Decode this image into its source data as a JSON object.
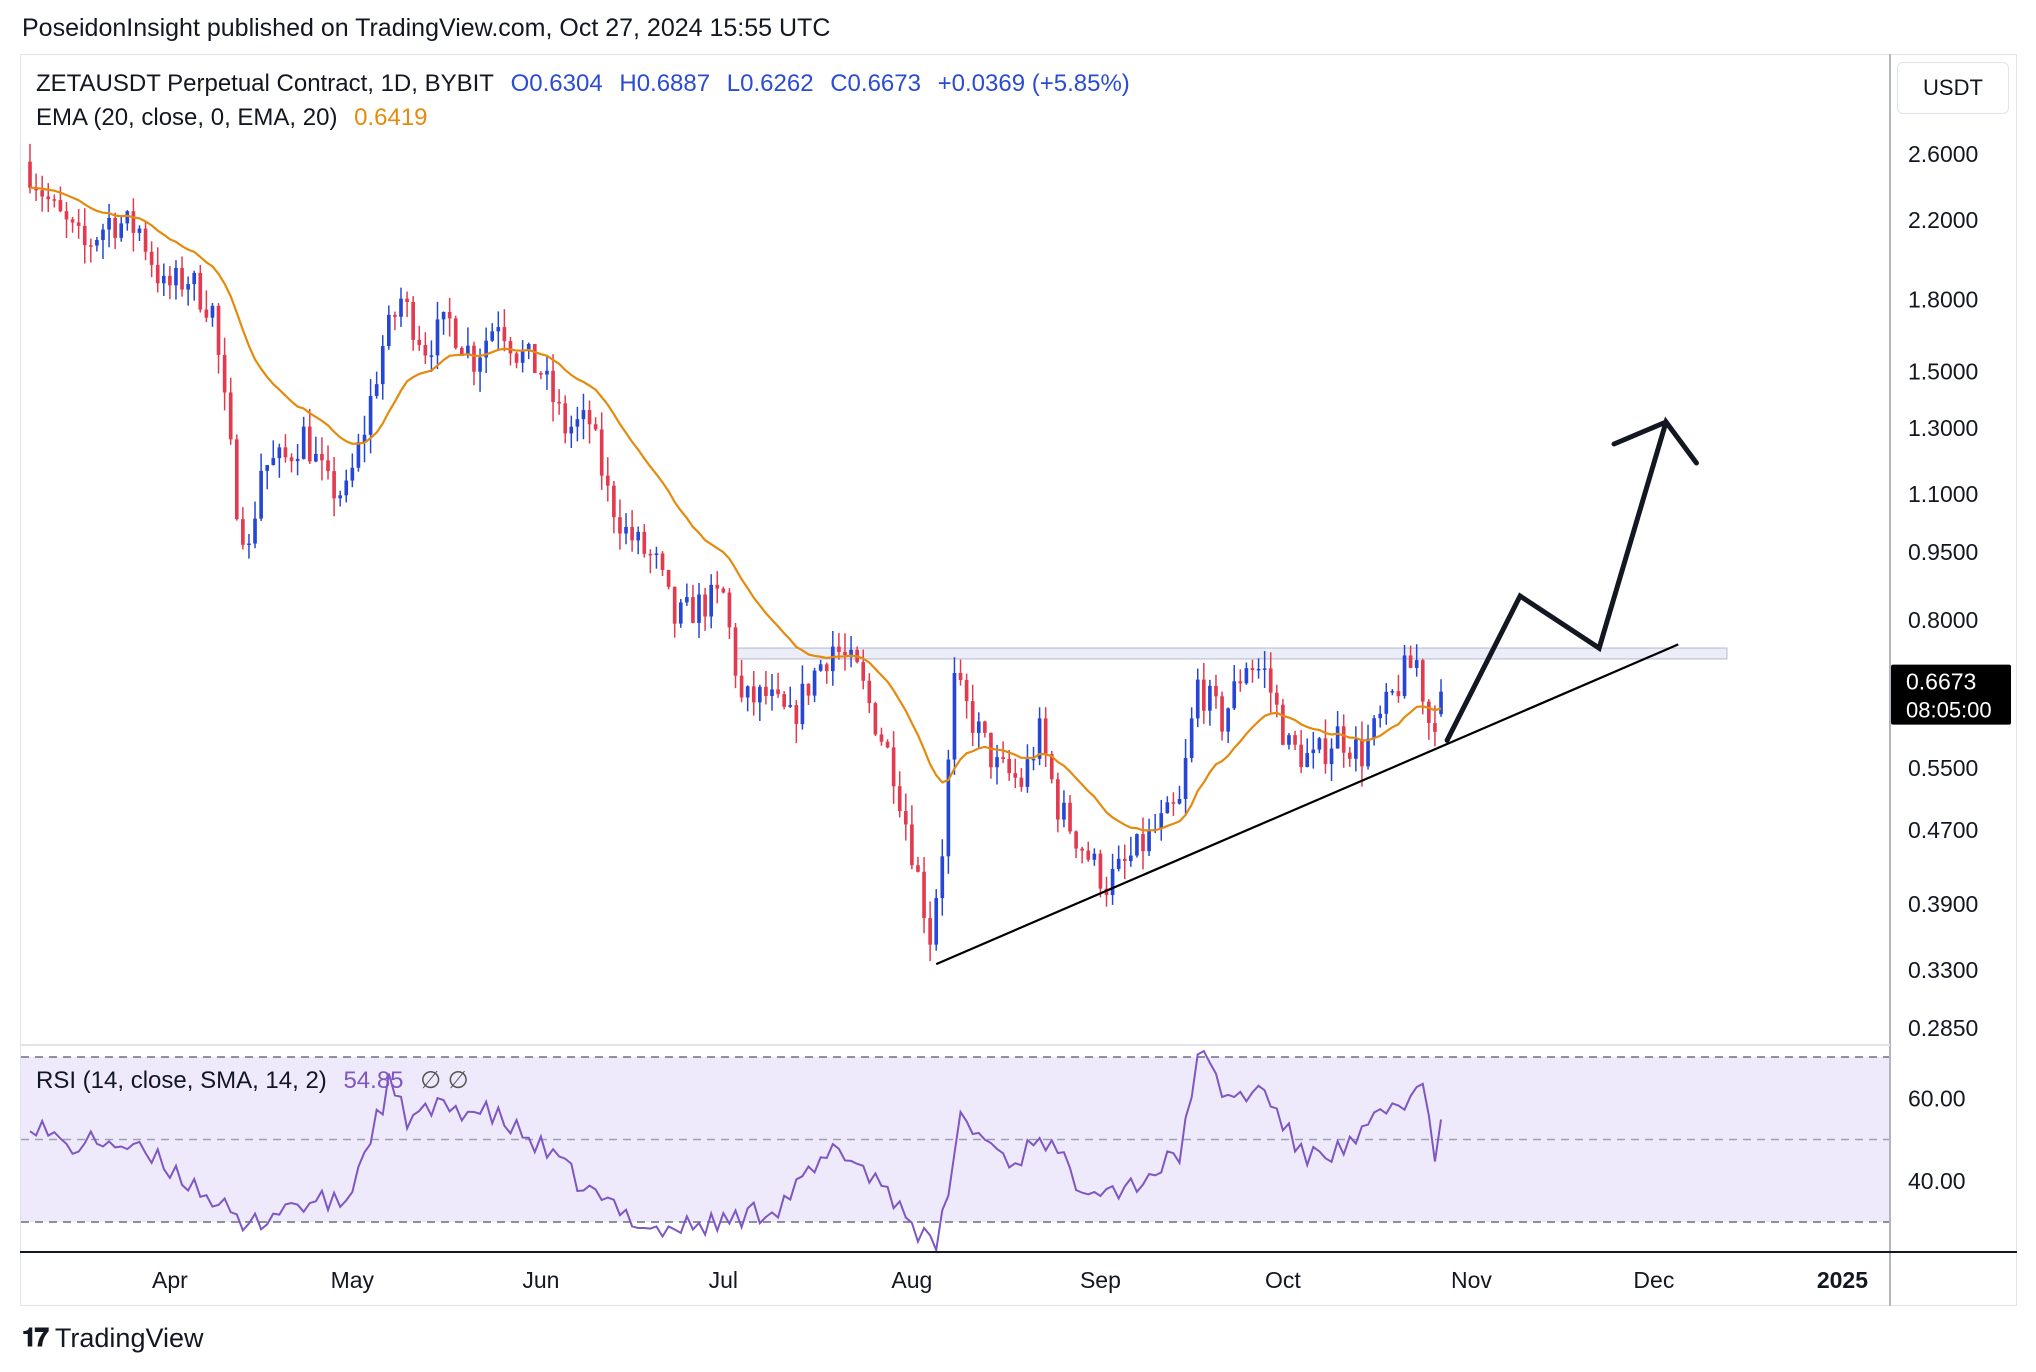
{
  "header": {
    "published": "PoseidonInsight published on TradingView.com, Oct 27, 2024 15:55 UTC"
  },
  "legend": {
    "symbol": "ZETAUSDT Perpetual Contract, 1D, BYBIT",
    "open": "O0.6304",
    "high": "H0.6887",
    "low": "L0.6262",
    "close": "C0.6673",
    "change": "+0.0369 (+5.85%)",
    "ema_label": "EMA (20, close, 0, EMA, 20)",
    "ema_value": "0.6419",
    "rsi_label": "RSI (14, close, SMA, 14, 2)",
    "rsi_value": "54.85",
    "rsi_extra": "∅  ∅"
  },
  "price_axis": {
    "currency": "USDT",
    "last_price": "0.6673",
    "countdown": "08:05:00",
    "rsi_ticks": [
      "60.00",
      "40.00"
    ]
  },
  "footer": {
    "brand": "TradingView",
    "logo_icon": "tradingview-logo-icon"
  },
  "colors": {
    "up": "#2647d6",
    "down": "#e23a4f",
    "ema": "#e48b0e",
    "rsi": "#7e57c2",
    "rsi_band": "#efeafb",
    "resistance": "#eceef7"
  },
  "chart_data": {
    "type": "candlestick",
    "scale": "log",
    "price_ticks": [
      2.6,
      2.2,
      1.8,
      1.5,
      1.3,
      1.1,
      0.95,
      0.8,
      0.55,
      0.47,
      0.39,
      0.33,
      0.285
    ],
    "price_tick_labels": [
      "2.6000",
      "2.2000",
      "1.8000",
      "1.5000",
      "1.3000",
      "1.1000",
      "0.9500",
      "0.8000",
      "0.5500",
      "0.4700",
      "0.3900",
      "0.3300",
      "0.2850"
    ],
    "x_ticks": [
      "Apr",
      "May",
      "Jun",
      "Jul",
      "Aug",
      "Sep",
      "Oct",
      "Nov",
      "Dec",
      "2025"
    ],
    "x_tick_dates": [
      "2024-04-01",
      "2024-05-01",
      "2024-06-01",
      "2024-07-01",
      "2024-08-01",
      "2024-09-01",
      "2024-10-01",
      "2024-11-01",
      "2024-12-01",
      "2025-01-01"
    ],
    "x_range": [
      "2024-03-09",
      "2025-01-08"
    ],
    "last_bar_date": "2024-10-27",
    "close_anchors": [
      [
        "2024-03-09",
        2.5
      ],
      [
        "2024-03-13",
        2.25
      ],
      [
        "2024-03-18",
        2.05
      ],
      [
        "2024-03-22",
        2.2
      ],
      [
        "2024-03-27",
        2.15
      ],
      [
        "2024-03-31",
        1.85
      ],
      [
        "2024-04-04",
        1.9
      ],
      [
        "2024-04-08",
        1.75
      ],
      [
        "2024-04-12",
        1.08
      ],
      [
        "2024-04-14",
        0.95
      ],
      [
        "2024-04-16",
        1.18
      ],
      [
        "2024-04-20",
        1.2
      ],
      [
        "2024-04-23",
        1.28
      ],
      [
        "2024-04-27",
        1.12
      ],
      [
        "2024-04-30",
        1.1
      ],
      [
        "2024-05-03",
        1.3
      ],
      [
        "2024-05-06",
        1.6
      ],
      [
        "2024-05-09",
        1.8
      ],
      [
        "2024-05-13",
        1.6
      ],
      [
        "2024-05-17",
        1.7
      ],
      [
        "2024-05-21",
        1.55
      ],
      [
        "2024-05-25",
        1.72
      ],
      [
        "2024-05-28",
        1.58
      ],
      [
        "2024-06-01",
        1.5
      ],
      [
        "2024-06-05",
        1.3
      ],
      [
        "2024-06-09",
        1.32
      ],
      [
        "2024-06-12",
        1.1
      ],
      [
        "2024-06-15",
        1.0
      ],
      [
        "2024-06-20",
        0.92
      ],
      [
        "2024-06-23",
        0.8
      ],
      [
        "2024-06-27",
        0.83
      ],
      [
        "2024-07-01",
        0.85
      ],
      [
        "2024-07-04",
        0.65
      ],
      [
        "2024-07-08",
        0.66
      ],
      [
        "2024-07-12",
        0.62
      ],
      [
        "2024-07-16",
        0.7
      ],
      [
        "2024-07-19",
        0.75
      ],
      [
        "2024-07-23",
        0.7
      ],
      [
        "2024-07-26",
        0.62
      ],
      [
        "2024-07-29",
        0.55
      ],
      [
        "2024-08-01",
        0.45
      ],
      [
        "2024-08-04",
        0.36
      ],
      [
        "2024-08-06",
        0.45
      ],
      [
        "2024-08-08",
        0.68
      ],
      [
        "2024-08-11",
        0.62
      ],
      [
        "2024-08-15",
        0.55
      ],
      [
        "2024-08-19",
        0.53
      ],
      [
        "2024-08-22",
        0.6
      ],
      [
        "2024-08-25",
        0.5
      ],
      [
        "2024-08-30",
        0.44
      ],
      [
        "2024-09-02",
        0.41
      ],
      [
        "2024-09-05",
        0.43
      ],
      [
        "2024-09-10",
        0.47
      ],
      [
        "2024-09-14",
        0.5
      ],
      [
        "2024-09-17",
        0.68
      ],
      [
        "2024-09-21",
        0.62
      ],
      [
        "2024-09-25",
        0.72
      ],
      [
        "2024-09-28",
        0.7
      ],
      [
        "2024-10-02",
        0.58
      ],
      [
        "2024-10-06",
        0.56
      ],
      [
        "2024-10-10",
        0.6
      ],
      [
        "2024-10-14",
        0.57
      ],
      [
        "2024-10-17",
        0.62
      ],
      [
        "2024-10-21",
        0.7
      ],
      [
        "2024-10-23",
        0.72
      ],
      [
        "2024-10-25",
        0.62
      ],
      [
        "2024-10-26",
        0.63
      ],
      [
        "2024-10-27",
        0.6673
      ]
    ],
    "ema": {
      "period": 20,
      "last_value": 0.6419
    },
    "resistance_zone": [
      0.725,
      0.745
    ],
    "support_trendline": [
      [
        "2024-08-05",
        0.335
      ],
      [
        "2024-12-05",
        0.752
      ]
    ],
    "projection_path": [
      [
        "2024-10-28",
        0.59
      ],
      [
        "2024-11-09",
        0.85
      ],
      [
        "2024-11-22",
        0.745
      ],
      [
        "2024-12-03",
        1.32
      ],
      [
        "2024-12-08",
        1.19
      ]
    ],
    "rsi": {
      "period": 14,
      "last_value": 54.85,
      "upper_band": 70,
      "lower_band": 30,
      "mid_line": 50,
      "anchors": [
        [
          "2024-03-09",
          55
        ],
        [
          "2024-03-15",
          48
        ],
        [
          "2024-03-22",
          50
        ],
        [
          "2024-03-31",
          44
        ],
        [
          "2024-04-08",
          36
        ],
        [
          "2024-04-13",
          28
        ],
        [
          "2024-04-20",
          34
        ],
        [
          "2024-04-30",
          35
        ],
        [
          "2024-05-07",
          63
        ],
        [
          "2024-05-10",
          55
        ],
        [
          "2024-05-17",
          58
        ],
        [
          "2024-05-24",
          56
        ],
        [
          "2024-06-01",
          48
        ],
        [
          "2024-06-10",
          36
        ],
        [
          "2024-06-20",
          28
        ],
        [
          "2024-07-01",
          30
        ],
        [
          "2024-07-10",
          34
        ],
        [
          "2024-07-20",
          48
        ],
        [
          "2024-07-28",
          38
        ],
        [
          "2024-08-05",
          22
        ],
        [
          "2024-08-09",
          55
        ],
        [
          "2024-08-18",
          44
        ],
        [
          "2024-08-22",
          52
        ],
        [
          "2024-08-28",
          40
        ],
        [
          "2024-09-05",
          38
        ],
        [
          "2024-09-14",
          46
        ],
        [
          "2024-09-17",
          71
        ],
        [
          "2024-09-22",
          60
        ],
        [
          "2024-09-28",
          62
        ],
        [
          "2024-10-04",
          46
        ],
        [
          "2024-10-12",
          48
        ],
        [
          "2024-10-19",
          58
        ],
        [
          "2024-10-24",
          62
        ],
        [
          "2024-10-26",
          47
        ],
        [
          "2024-10-27",
          54.85
        ]
      ]
    }
  }
}
